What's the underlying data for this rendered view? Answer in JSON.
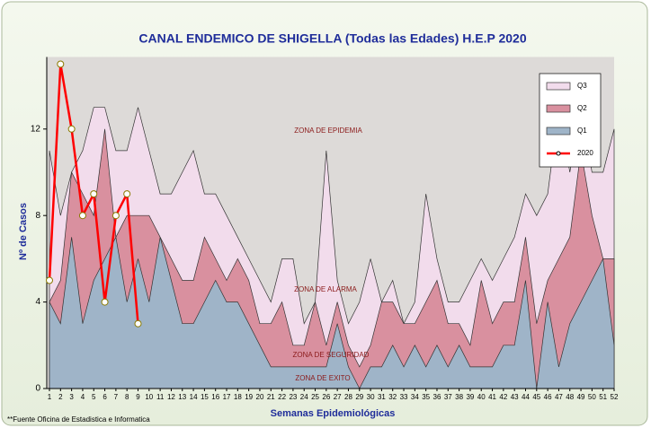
{
  "chart_data": {
    "type": "area",
    "title": "CANAL ENDEMICO DE SHIGELLA (Todas las Edades) H.E.P 2020",
    "x_label": "Semanas Epidemiológicas",
    "y_label": "Nº de Casos",
    "x": [
      1,
      2,
      3,
      4,
      5,
      6,
      7,
      8,
      9,
      10,
      11,
      12,
      13,
      14,
      15,
      16,
      17,
      18,
      19,
      20,
      21,
      22,
      23,
      24,
      25,
      26,
      27,
      28,
      29,
      30,
      31,
      32,
      33,
      34,
      35,
      36,
      37,
      38,
      39,
      40,
      41,
      42,
      43,
      44,
      45,
      46,
      47,
      48,
      49,
      50,
      51,
      52
    ],
    "xlim": [
      1,
      52
    ],
    "ylim": [
      0,
      15
    ],
    "yticks": [
      0,
      4,
      8,
      12
    ],
    "series": [
      {
        "name": "Q3",
        "color": "#f2dcec",
        "values": [
          11,
          8,
          10,
          11,
          13,
          13,
          11,
          11,
          13,
          11,
          9,
          9,
          10,
          11,
          9,
          9,
          8,
          7,
          6,
          5,
          4,
          6,
          6,
          3,
          4,
          11,
          5,
          3,
          4,
          6,
          4,
          5,
          3,
          4,
          9,
          6,
          4,
          4,
          5,
          6,
          5,
          6,
          7,
          9,
          8,
          9,
          13,
          10,
          13,
          10,
          10,
          12
        ]
      },
      {
        "name": "Q2",
        "color": "#d9909f",
        "values": [
          4,
          5,
          10,
          9,
          8,
          12,
          7,
          8,
          8,
          8,
          7,
          6,
          5,
          5,
          7,
          6,
          5,
          6,
          5,
          3,
          3,
          4,
          2,
          2,
          4,
          2,
          4,
          2,
          1,
          2,
          4,
          4,
          3,
          3,
          4,
          5,
          3,
          3,
          2,
          5,
          3,
          4,
          4,
          7,
          3,
          5,
          6,
          7,
          11,
          8,
          6,
          6
        ]
      },
      {
        "name": "Q1",
        "color": "#9fb4c8",
        "values": [
          4,
          3,
          7,
          3,
          5,
          6,
          7,
          4,
          6,
          4,
          7,
          5,
          3,
          3,
          4,
          5,
          4,
          4,
          3,
          2,
          1,
          1,
          1,
          1,
          1,
          1,
          3,
          1,
          0,
          1,
          1,
          2,
          1,
          2,
          1,
          2,
          1,
          2,
          1,
          1,
          1,
          2,
          2,
          5,
          0,
          4,
          1,
          3,
          4,
          5,
          6,
          2
        ]
      },
      {
        "name": "2020",
        "color": "#ff0000",
        "type": "line",
        "values": [
          5,
          15,
          12,
          8,
          9,
          4,
          8,
          9,
          3,
          null,
          null,
          null,
          null,
          null,
          null,
          null,
          null,
          null,
          null,
          null,
          null,
          null,
          null,
          null,
          null,
          null,
          null,
          null,
          null,
          null,
          null,
          null,
          null,
          null,
          null,
          null,
          null,
          null,
          null,
          null,
          null,
          null,
          null,
          null,
          null,
          null,
          null,
          null,
          null,
          null,
          null,
          null
        ]
      }
    ],
    "annotations": [
      "ZONA DE EPIDEMIA",
      "ZONA DE ALARMA",
      "ZONA DE SEGURIDAD",
      "ZONA DE EXITO"
    ],
    "source": "**Fuente Oficina de Estadistica e Informatica"
  }
}
